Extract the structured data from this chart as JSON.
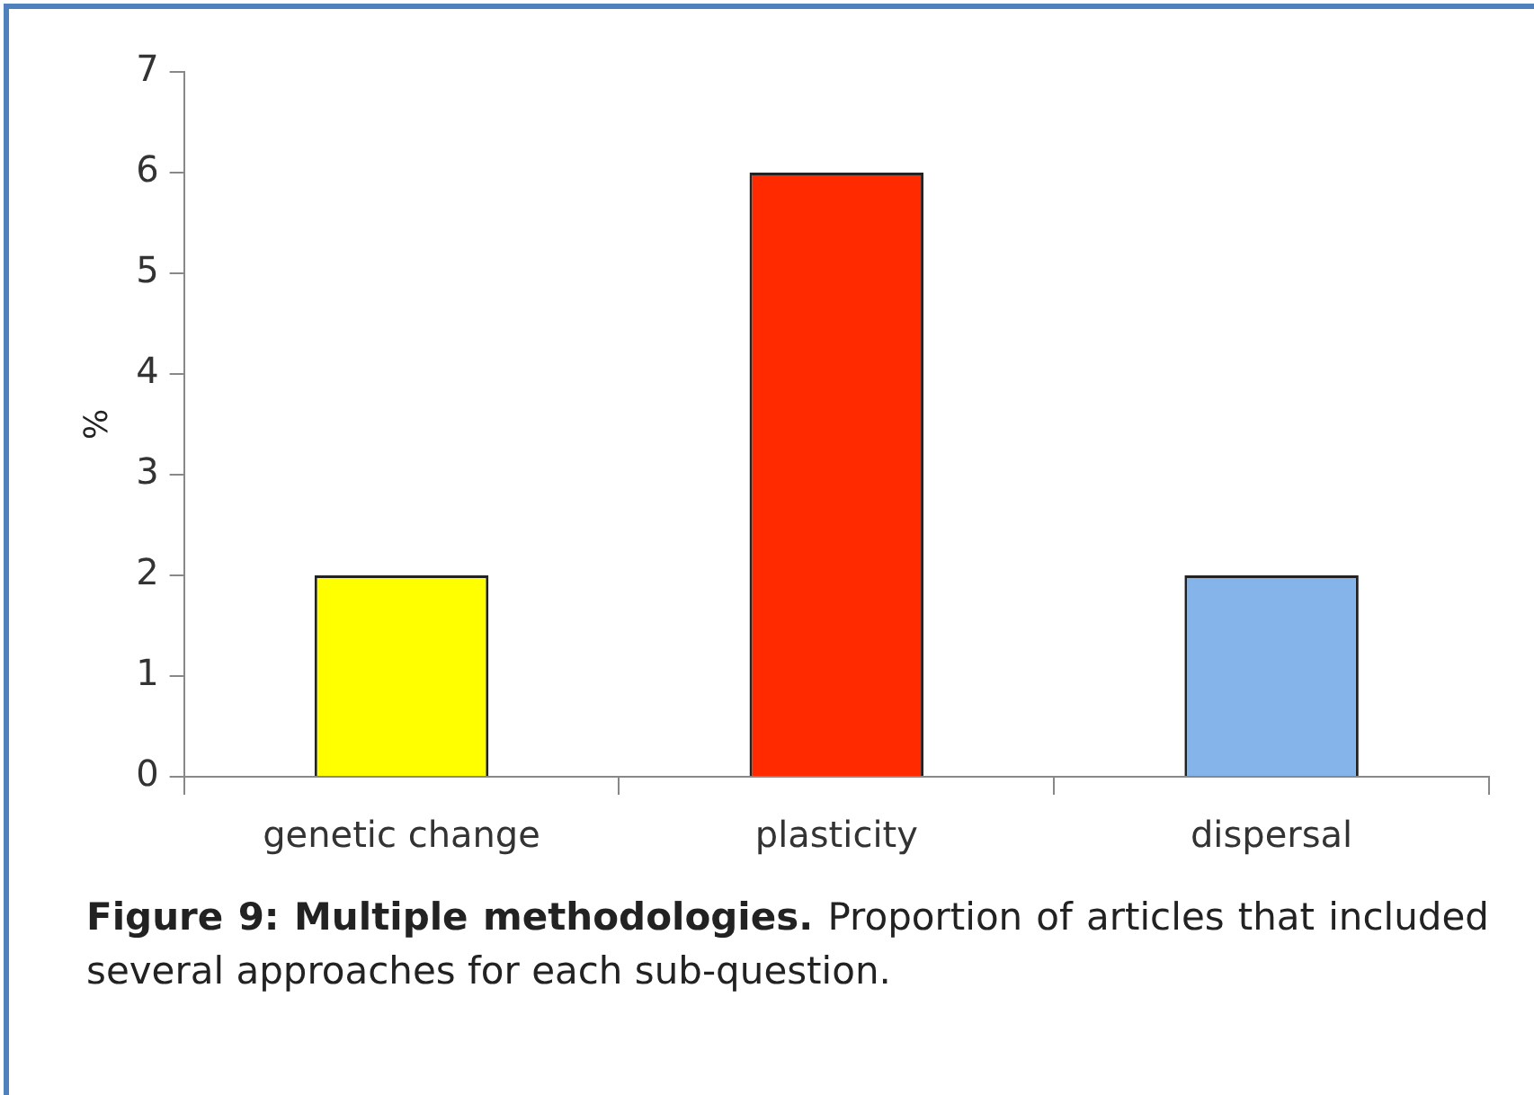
{
  "chart_data": {
    "type": "bar",
    "ylabel": "%",
    "categories": [
      "genetic change",
      "plasticity",
      "dispersal"
    ],
    "values": [
      2,
      6,
      2
    ],
    "colors": [
      "#ffff00",
      "#ff2a00",
      "#84b4ea"
    ],
    "ylim": [
      0,
      7
    ],
    "yticks": [
      0,
      1,
      2,
      3,
      4,
      5,
      6,
      7
    ],
    "grid": false,
    "legend": false,
    "annotations": [
      "Figure 9: Multiple methodologies.",
      "Proportion of articles that included several approaches for each sub-question."
    ]
  }
}
